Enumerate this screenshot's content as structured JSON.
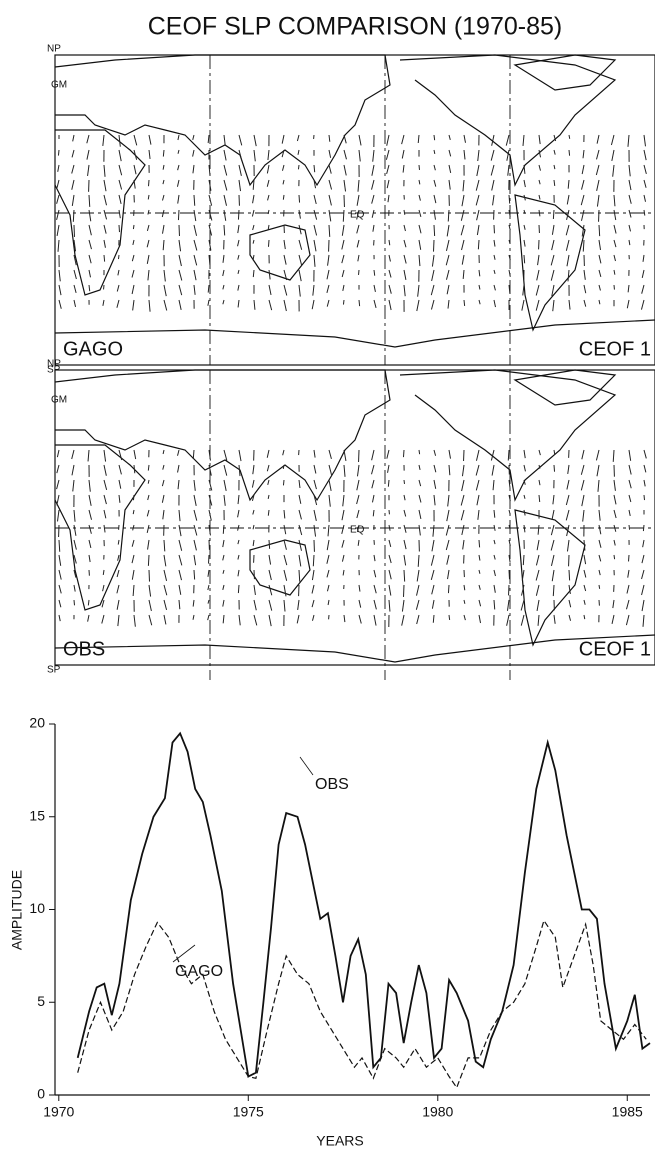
{
  "title": "CEOF SLP COMPARISON (1970-85)",
  "maps": [
    {
      "name": "GAGO",
      "mode": "CEOF 1",
      "np": "NP",
      "gm": "GM",
      "eq": "EQ",
      "sp": "SP"
    },
    {
      "name": "OBS",
      "mode": "CEOF 1",
      "np": "NP",
      "gm": "GM",
      "eq": "EQ",
      "sp": "SP"
    }
  ],
  "chart_data": {
    "type": "line",
    "xlabel": "YEARS",
    "ylabel": "AMPLITUDE",
    "xlim": [
      1969.9,
      1985.6
    ],
    "ylim": [
      0,
      20
    ],
    "xticks": [
      1970,
      1975,
      1980,
      1985
    ],
    "yticks": [
      0,
      5,
      10,
      15,
      20
    ],
    "series": [
      {
        "name": "OBS",
        "color": "#111111",
        "style": "solid",
        "x": [
          1970.5,
          1970.8,
          1971.0,
          1971.2,
          1971.4,
          1971.6,
          1971.9,
          1972.2,
          1972.5,
          1972.8,
          1973.0,
          1973.2,
          1973.4,
          1973.6,
          1973.8,
          1974.0,
          1974.3,
          1974.6,
          1974.8,
          1975.0,
          1975.2,
          1975.4,
          1975.6,
          1975.8,
          1976.0,
          1976.3,
          1976.5,
          1976.7,
          1976.9,
          1977.1,
          1977.3,
          1977.5,
          1977.7,
          1977.9,
          1978.1,
          1978.3,
          1978.5,
          1978.7,
          1978.9,
          1979.1,
          1979.3,
          1979.5,
          1979.7,
          1979.9,
          1980.1,
          1980.3,
          1980.5,
          1980.8,
          1981.0,
          1981.2,
          1981.4,
          1981.7,
          1982.0,
          1982.3,
          1982.6,
          1982.9,
          1983.1,
          1983.4,
          1983.6,
          1983.8,
          1984.0,
          1984.2,
          1984.4,
          1984.7,
          1985.0,
          1985.2,
          1985.4,
          1985.6
        ],
        "values": [
          2.0,
          4.5,
          5.8,
          6.0,
          4.3,
          6.0,
          10.5,
          13.0,
          15.0,
          16.0,
          19.0,
          19.5,
          18.5,
          16.5,
          15.8,
          14.0,
          11.0,
          6.0,
          3.5,
          1.0,
          1.2,
          5.0,
          9.0,
          13.5,
          15.2,
          15.0,
          13.5,
          11.5,
          9.5,
          9.8,
          7.5,
          5.0,
          7.5,
          8.4,
          6.5,
          1.5,
          2.0,
          6.0,
          5.5,
          2.8,
          5.0,
          7.0,
          5.5,
          2.0,
          2.5,
          6.2,
          5.5,
          4.0,
          1.8,
          1.5,
          3.0,
          4.5,
          7.0,
          12.0,
          16.5,
          19.0,
          17.5,
          14.0,
          12.0,
          10.0,
          10.0,
          9.5,
          6.0,
          2.5,
          4.0,
          5.4,
          2.5,
          2.8
        ]
      },
      {
        "name": "GAGO",
        "color": "#111111",
        "style": "dashed",
        "x": [
          1970.5,
          1970.8,
          1971.1,
          1971.4,
          1971.7,
          1972.0,
          1972.3,
          1972.6,
          1972.9,
          1973.2,
          1973.5,
          1973.8,
          1974.1,
          1974.4,
          1974.7,
          1975.0,
          1975.2,
          1975.5,
          1975.8,
          1976.0,
          1976.3,
          1976.6,
          1976.9,
          1977.2,
          1977.5,
          1977.8,
          1978.0,
          1978.3,
          1978.6,
          1978.9,
          1979.1,
          1979.4,
          1979.7,
          1980.0,
          1980.3,
          1980.5,
          1980.8,
          1981.1,
          1981.4,
          1981.7,
          1982.0,
          1982.3,
          1982.6,
          1982.8,
          1983.1,
          1983.3,
          1983.6,
          1983.9,
          1984.1,
          1984.3,
          1984.6,
          1984.9,
          1985.2,
          1985.5
        ],
        "values": [
          1.2,
          3.5,
          5.0,
          3.5,
          4.5,
          6.5,
          8.0,
          9.3,
          8.5,
          7.0,
          6.0,
          6.5,
          4.5,
          3.0,
          2.0,
          1.0,
          0.9,
          3.5,
          6.0,
          7.5,
          6.5,
          6.0,
          4.5,
          3.5,
          2.5,
          1.5,
          2.0,
          0.9,
          2.5,
          2.0,
          1.5,
          2.5,
          1.5,
          2.0,
          1.0,
          0.4,
          2.0,
          2.0,
          3.5,
          4.5,
          5.0,
          6.0,
          8.0,
          9.4,
          8.5,
          5.8,
          7.5,
          9.2,
          7.0,
          4.0,
          3.5,
          3.0,
          3.8,
          3.0
        ]
      }
    ]
  }
}
